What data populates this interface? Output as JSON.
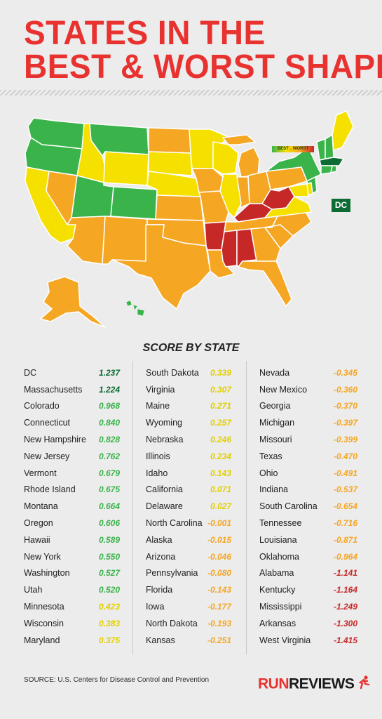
{
  "title": {
    "line1": "STATES IN THE",
    "line2": "BEST & WORST SHAPE"
  },
  "legend": {
    "text": "BEST←WORST"
  },
  "dc_label": "DC",
  "score_title": "SCORE BY STATE",
  "colors": {
    "dark_green": "#0d6b34",
    "green": "#3ab34a",
    "yellow": "#f5e000",
    "orange": "#f5a623",
    "red": "#c62828",
    "title_red": "#e8322f"
  },
  "chart_data": {
    "type": "table",
    "title": "SCORE BY STATE",
    "columns": [
      "state",
      "score"
    ],
    "rows": [
      {
        "state": "DC",
        "score": "1.237",
        "color": "#0d6b34"
      },
      {
        "state": "Massachusetts",
        "score": "1.224",
        "color": "#0d6b34"
      },
      {
        "state": "Colorado",
        "score": "0.968",
        "color": "#3ab34a"
      },
      {
        "state": "Connecticut",
        "score": "0.840",
        "color": "#3ab34a"
      },
      {
        "state": "New Hampshire",
        "score": "0.828",
        "color": "#3ab34a"
      },
      {
        "state": "New Jersey",
        "score": "0.762",
        "color": "#3ab34a"
      },
      {
        "state": "Vermont",
        "score": "0.679",
        "color": "#3ab34a"
      },
      {
        "state": "Rhode Island",
        "score": "0.675",
        "color": "#3ab34a"
      },
      {
        "state": "Montana",
        "score": "0.664",
        "color": "#3ab34a"
      },
      {
        "state": "Oregon",
        "score": "0.606",
        "color": "#3ab34a"
      },
      {
        "state": "Hawaii",
        "score": "0.589",
        "color": "#3ab34a"
      },
      {
        "state": "New York",
        "score": "0.550",
        "color": "#3ab34a"
      },
      {
        "state": "Washington",
        "score": "0.527",
        "color": "#3ab34a"
      },
      {
        "state": "Utah",
        "score": "0.520",
        "color": "#3ab34a"
      },
      {
        "state": "Minnesota",
        "score": "0.423",
        "color": "#f5e000"
      },
      {
        "state": "Wisconsin",
        "score": "0.383",
        "color": "#f5e000"
      },
      {
        "state": "Maryland",
        "score": "0.375",
        "color": "#f5e000"
      },
      {
        "state": "South Dakota",
        "score": "0.339",
        "color": "#f5e000"
      },
      {
        "state": "Virginia",
        "score": "0.307",
        "color": "#f5e000"
      },
      {
        "state": "Maine",
        "score": "0.271",
        "color": "#f5e000"
      },
      {
        "state": "Wyoming",
        "score": "0.257",
        "color": "#f5e000"
      },
      {
        "state": "Nebraska",
        "score": "0.246",
        "color": "#f5e000"
      },
      {
        "state": "Illinois",
        "score": "0.234",
        "color": "#f5e000"
      },
      {
        "state": "Idaho",
        "score": "0.143",
        "color": "#f5e000"
      },
      {
        "state": "California",
        "score": "0.071",
        "color": "#f5e000"
      },
      {
        "state": "Delaware",
        "score": "0.027",
        "color": "#f5e000"
      },
      {
        "state": "North Carolina",
        "score": "-0.001",
        "color": "#f5a623"
      },
      {
        "state": "Alaska",
        "score": "-0.015",
        "color": "#f5a623"
      },
      {
        "state": "Arizona",
        "score": "-0.046",
        "color": "#f5a623"
      },
      {
        "state": "Pennsylvania",
        "score": "-0.080",
        "color": "#f5a623"
      },
      {
        "state": "Florida",
        "score": "-0.143",
        "color": "#f5a623"
      },
      {
        "state": "Iowa",
        "score": "-0.177",
        "color": "#f5a623"
      },
      {
        "state": "North Dakota",
        "score": "-0.193",
        "color": "#f5a623"
      },
      {
        "state": "Kansas",
        "score": "-0.251",
        "color": "#f5a623"
      },
      {
        "state": "Nevada",
        "score": "-0.345",
        "color": "#f5a623"
      },
      {
        "state": "New Mexico",
        "score": "-0.360",
        "color": "#f5a623"
      },
      {
        "state": "Georgia",
        "score": "-0.370",
        "color": "#f5a623"
      },
      {
        "state": "Michigan",
        "score": "-0.397",
        "color": "#f5a623"
      },
      {
        "state": "Missouri",
        "score": "-0.399",
        "color": "#f5a623"
      },
      {
        "state": "Texas",
        "score": "-0.470",
        "color": "#f5a623"
      },
      {
        "state": "Ohio",
        "score": "-0.491",
        "color": "#f5a623"
      },
      {
        "state": "Indiana",
        "score": "-0.537",
        "color": "#f5a623"
      },
      {
        "state": "South Carolina",
        "score": "-0.654",
        "color": "#f5a623"
      },
      {
        "state": "Tennessee",
        "score": "-0.716",
        "color": "#f5a623"
      },
      {
        "state": "Louisiana",
        "score": "-0.871",
        "color": "#f5a623"
      },
      {
        "state": "Oklahoma",
        "score": "-0.964",
        "color": "#f5a623"
      },
      {
        "state": "Alabama",
        "score": "-1.141",
        "color": "#c62828"
      },
      {
        "state": "Kentucky",
        "score": "-1.164",
        "color": "#c62828"
      },
      {
        "state": "Mississippi",
        "score": "-1.249",
        "color": "#c62828"
      },
      {
        "state": "Arkansas",
        "score": "-1.300",
        "color": "#c62828"
      },
      {
        "state": "West Virginia",
        "score": "-1.415",
        "color": "#c62828"
      }
    ]
  },
  "source": "SOURCE: U.S. Centers for Disease Control and Prevention",
  "logo": {
    "part1": "RUN",
    "part2": "REVIEWS"
  }
}
